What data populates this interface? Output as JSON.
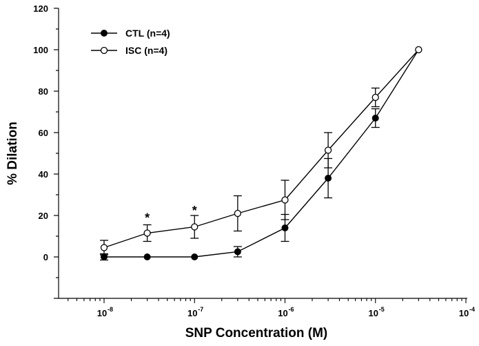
{
  "chart_data": {
    "type": "line",
    "xlabel": "SNP Concentration (M)",
    "ylabel": "% Dilation",
    "x_scale": "log",
    "ylim": [
      -20,
      120
    ],
    "y_ticks": [
      "0",
      "20",
      "40",
      "60",
      "80",
      "100",
      "120"
    ],
    "x_ticks": [
      {
        "value": 1e-08,
        "base": "10",
        "exp": "-8"
      },
      {
        "value": 1e-07,
        "base": "10",
        "exp": "-7"
      },
      {
        "value": 1e-06,
        "base": "10",
        "exp": "-6"
      },
      {
        "value": 1e-05,
        "base": "10",
        "exp": "-5"
      },
      {
        "value": 0.0001,
        "base": "10",
        "exp": "-4"
      }
    ],
    "series": [
      {
        "name": "CTL (n=4)",
        "marker": "filled-circle",
        "x": [
          1e-08,
          3e-08,
          1e-07,
          3e-07,
          1e-06,
          3e-06,
          1e-05,
          3e-05
        ],
        "values": [
          0,
          0,
          0,
          2.5,
          14,
          38,
          67,
          100
        ],
        "err": [
          1.5,
          0,
          0,
          2.5,
          6.5,
          9.5,
          4.5,
          0
        ]
      },
      {
        "name": "ISC (n=4)",
        "marker": "open-circle",
        "x": [
          1e-08,
          3e-08,
          1e-07,
          3e-07,
          1e-06,
          3e-06,
          1e-05,
          3e-05
        ],
        "values": [
          4.5,
          11.5,
          14.5,
          21,
          27.5,
          51.5,
          77,
          100
        ],
        "err": [
          3.5,
          4,
          5.5,
          8.5,
          9.5,
          8.5,
          4.5,
          0
        ]
      }
    ],
    "annotations": [
      {
        "text": "*",
        "x": 3e-08,
        "y": 19.5
      },
      {
        "text": "*",
        "x": 1e-07,
        "y": 23
      }
    ],
    "legend_position": "top-left"
  }
}
